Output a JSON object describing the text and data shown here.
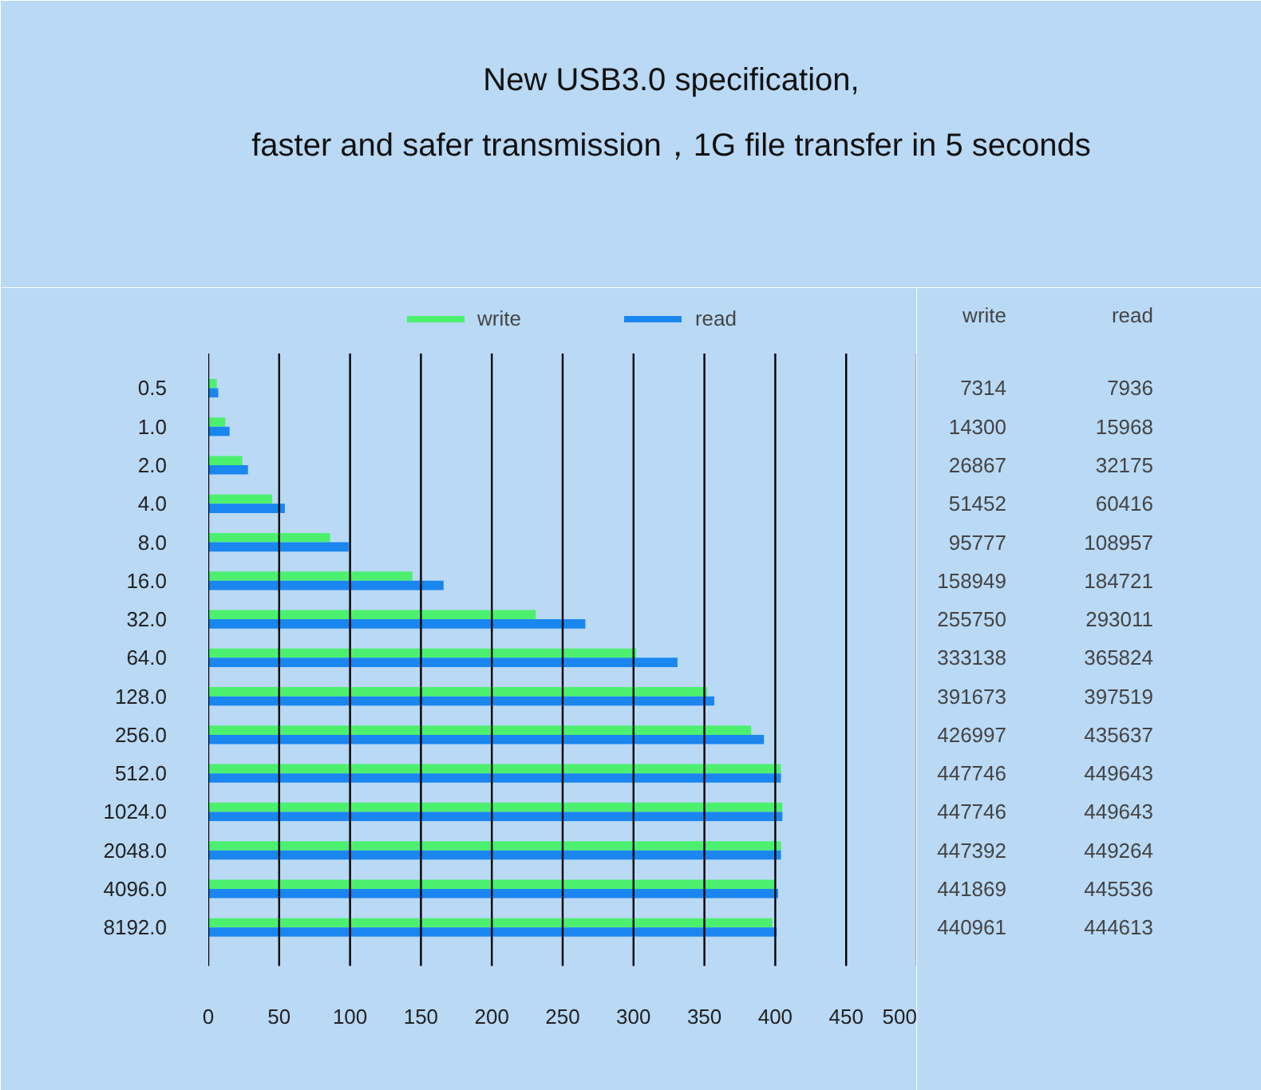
{
  "chart_data": {
    "type": "bar",
    "orientation": "horizontal",
    "title": "New USB3.0 specification,",
    "subtitle": "faster and safer transmission，1G file transfer in 5 seconds",
    "categories": [
      "0.5",
      "1.0",
      "2.0",
      "4.0",
      "8.0",
      "16.0",
      "32.0",
      "64.0",
      "128.0",
      "256.0",
      "512.0",
      "1024.0",
      "2048.0",
      "4096.0",
      "8192.0"
    ],
    "series": [
      {
        "name": "write",
        "color": "#4cf06f",
        "values": [
          6,
          12,
          24,
          45,
          86,
          144,
          231,
          302,
          352,
          383,
          404,
          405,
          404,
          400,
          398
        ]
      },
      {
        "name": "read",
        "color": "#1a86f0",
        "values": [
          7,
          15,
          28,
          54,
          99,
          166,
          266,
          331,
          357,
          392,
          404,
          405,
          404,
          402,
          401
        ]
      }
    ],
    "annotations": [
      "7314",
      "14300",
      "26867",
      "51452",
      "95777",
      "158949",
      "255750",
      "333138",
      "391673",
      "426997",
      "447746",
      "447746",
      "447392",
      "441869",
      "440961",
      "7936",
      "15968",
      "32175",
      "60416",
      "108957",
      "184721",
      "293011",
      "365824",
      "397519",
      "435637",
      "449643",
      "449643",
      "449264",
      "445536",
      "444613"
    ],
    "xlim": [
      0,
      500
    ],
    "xticks": [
      0,
      50,
      100,
      150,
      200,
      250,
      300,
      350,
      400,
      450,
      500
    ],
    "grid": "x",
    "legend": "top"
  }
}
